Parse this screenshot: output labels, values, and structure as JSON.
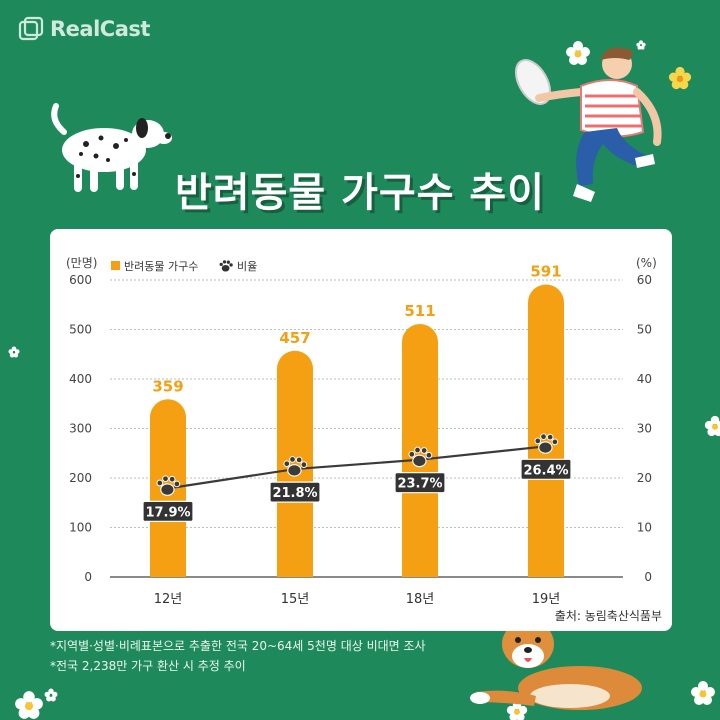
{
  "brand": {
    "logo_text": "RealCast"
  },
  "title": "반려동물 가구수 추이",
  "chart_data": {
    "type": "bar",
    "categories": [
      "12년",
      "15년",
      "18년",
      "19년"
    ],
    "series": [
      {
        "name": "반려동물 가구수",
        "type": "bar",
        "values": [
          359,
          457,
          511,
          591
        ],
        "color": "#f5a012",
        "axis": "left",
        "labels": [
          "359",
          "457",
          "511",
          "591"
        ]
      },
      {
        "name": "비율",
        "type": "line",
        "values": [
          17.9,
          21.8,
          23.7,
          26.4
        ],
        "color": "#3a3a3a",
        "axis": "right",
        "labels": [
          "17.9%",
          "21.8%",
          "23.7%",
          "26.4%"
        ]
      }
    ],
    "left_axis": {
      "unit": "(만명)",
      "min": 0,
      "max": 600,
      "ticks": [
        "0",
        "100",
        "200",
        "300",
        "400",
        "500",
        "600"
      ]
    },
    "right_axis": {
      "unit": "(%)",
      "min": 0,
      "max": 60,
      "ticks": [
        "0",
        "10",
        "20",
        "30",
        "40",
        "50",
        "60"
      ]
    },
    "grid": true,
    "legend_position": "top-left",
    "source": "출처: 농림축산식품부"
  },
  "notes": [
    "*지역별·성별·비례표본으로 추출한 전국 20~64세 5천명 대상 비대면 조사",
    "*전국 2,238만 가구 환산 시 추정 추이"
  ],
  "colors": {
    "background": "#1e8a5b",
    "bar": "#f5a012",
    "line": "#3a3a3a",
    "badge": "#333333"
  }
}
